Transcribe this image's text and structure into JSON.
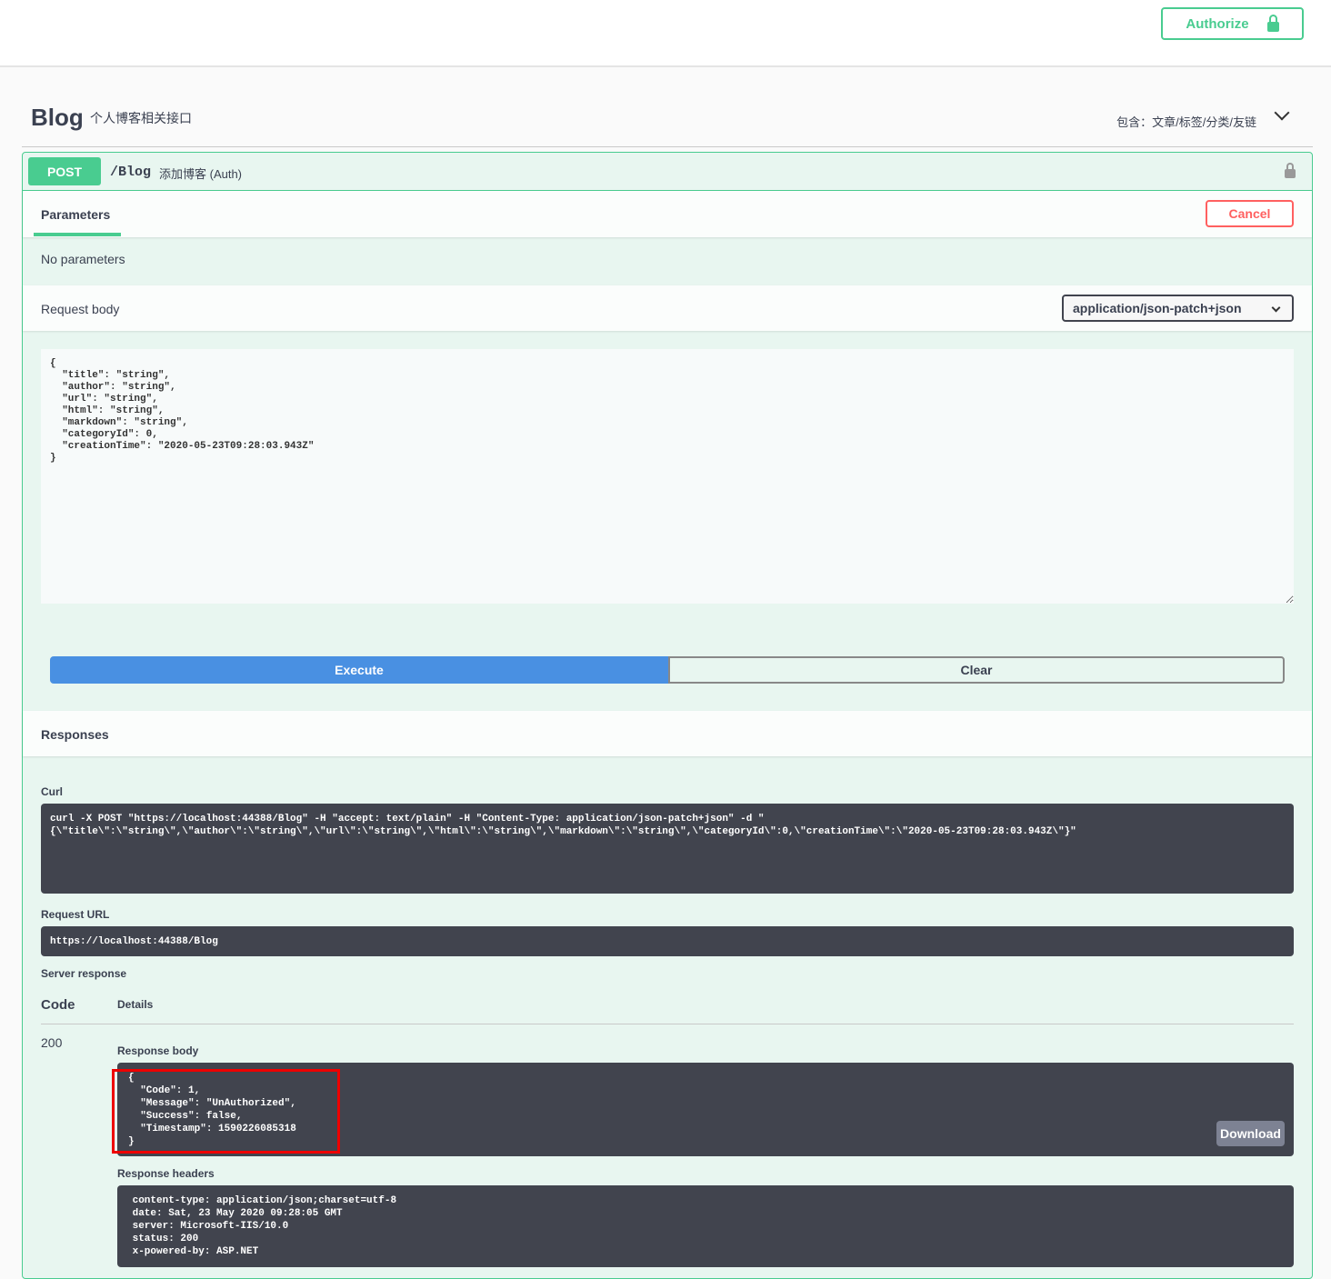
{
  "header": {
    "authorize_label": "Authorize"
  },
  "tag": {
    "name": "Blog",
    "description": "个人博客相关接口",
    "includes": "包含：文章/标签/分类/友链"
  },
  "operation": {
    "method": "POST",
    "path": "/Blog",
    "summary": "添加博客 (Auth)",
    "parameters_tab": "Parameters",
    "cancel_label": "Cancel",
    "no_parameters": "No parameters",
    "request_body_label": "Request body",
    "content_type": "application/json-patch+json",
    "request_body": "{\n  \"title\": \"string\",\n  \"author\": \"string\",\n  \"url\": \"string\",\n  \"html\": \"string\",\n  \"markdown\": \"string\",\n  \"categoryId\": 0,\n  \"creationTime\": \"2020-05-23T09:28:03.943Z\"\n}",
    "execute_label": "Execute",
    "clear_label": "Clear"
  },
  "responses": {
    "title": "Responses",
    "curl_label": "Curl",
    "curl": "curl -X POST \"https://localhost:44388/Blog\" -H \"accept: text/plain\" -H \"Content-Type: application/json-patch+json\" -d \"\n{\\\"title\\\":\\\"string\\\",\\\"author\\\":\\\"string\\\",\\\"url\\\":\\\"string\\\",\\\"html\\\":\\\"string\\\",\\\"markdown\\\":\\\"string\\\",\\\"categoryId\\\":0,\\\"creationTime\\\":\\\"2020-05-23T09:28:03.943Z\\\"}\"",
    "request_url_label": "Request URL",
    "request_url": "https://localhost:44388/Blog",
    "server_response_label": "Server response",
    "code_header": "Code",
    "details_header": "Details",
    "code": "200",
    "response_body_label": "Response body",
    "response_body": "{\n  \"Code\": 1,\n  \"Message\": \"UnAuthorized\",\n  \"Success\": false,\n  \"Timestamp\": 1590226085318\n}",
    "download_label": "Download",
    "response_headers_label": "Response headers",
    "response_headers": " content-type: application/json;charset=utf-8\n date: Sat, 23 May 2020 09:28:05 GMT\n server: Microsoft-IIS/10.0\n status: 200\n x-powered-by: ASP.NET"
  }
}
